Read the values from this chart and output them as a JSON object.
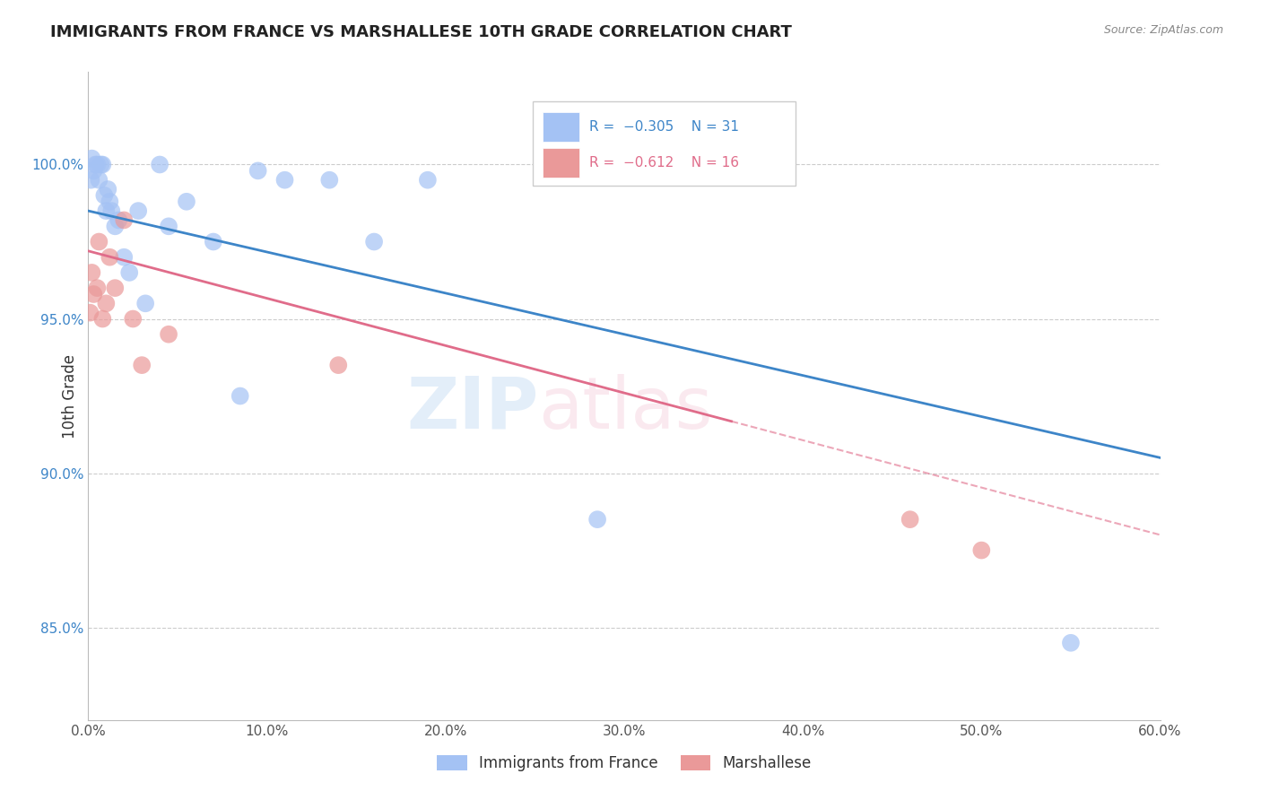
{
  "title": "IMMIGRANTS FROM FRANCE VS MARSHALLESE 10TH GRADE CORRELATION CHART",
  "source": "Source: ZipAtlas.com",
  "xlabel_ticks": [
    "0.0%",
    "10.0%",
    "20.0%",
    "30.0%",
    "40.0%",
    "50.0%",
    "60.0%"
  ],
  "xlabel_vals": [
    0.0,
    10.0,
    20.0,
    30.0,
    40.0,
    50.0,
    60.0
  ],
  "ylabel": "10th Grade",
  "ylabel_vals": [
    85.0,
    90.0,
    95.0,
    100.0
  ],
  "xlim": [
    0.0,
    60.0
  ],
  "ylim": [
    82.0,
    103.0
  ],
  "legend_label_blue": "Immigrants from France",
  "legend_label_pink": "Marshallese",
  "blue_color": "#a4c2f4",
  "pink_color": "#ea9999",
  "trendline_blue_color": "#3d85c8",
  "trendline_pink_color": "#e06c8a",
  "blue_scatter_x": [
    0.15,
    0.2,
    0.3,
    0.4,
    0.5,
    0.6,
    0.7,
    0.8,
    0.9,
    1.0,
    1.1,
    1.2,
    1.3,
    1.5,
    1.7,
    2.0,
    2.3,
    2.8,
    3.2,
    4.0,
    4.5,
    5.5,
    7.0,
    8.5,
    9.5,
    11.0,
    13.5,
    16.0,
    19.0,
    28.5,
    55.0
  ],
  "blue_scatter_y": [
    99.5,
    100.2,
    99.8,
    100.0,
    100.0,
    99.5,
    100.0,
    100.0,
    99.0,
    98.5,
    99.2,
    98.8,
    98.5,
    98.0,
    98.2,
    97.0,
    96.5,
    98.5,
    95.5,
    100.0,
    98.0,
    98.8,
    97.5,
    92.5,
    99.8,
    99.5,
    99.5,
    97.5,
    99.5,
    88.5,
    84.5
  ],
  "pink_scatter_x": [
    0.1,
    0.2,
    0.3,
    0.5,
    0.6,
    0.8,
    1.0,
    1.2,
    1.5,
    2.0,
    2.5,
    3.0,
    4.5,
    14.0,
    46.0,
    50.0
  ],
  "pink_scatter_y": [
    95.2,
    96.5,
    95.8,
    96.0,
    97.5,
    95.0,
    95.5,
    97.0,
    96.0,
    98.2,
    95.0,
    93.5,
    94.5,
    93.5,
    88.5,
    87.5
  ],
  "blue_trend_x0": 0.0,
  "blue_trend_y0": 98.5,
  "blue_trend_x1": 60.0,
  "blue_trend_y1": 90.5,
  "pink_trend_x0": 0.0,
  "pink_trend_y0": 97.2,
  "pink_trend_x1": 60.0,
  "pink_trend_y1": 88.0,
  "pink_solid_end": 36.0
}
